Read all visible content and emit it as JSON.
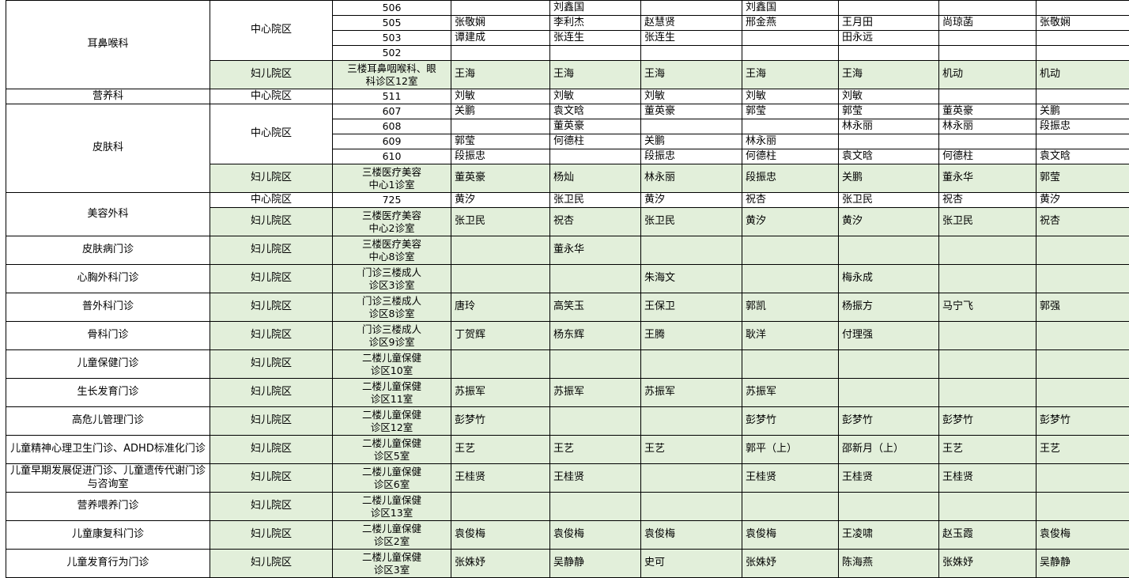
{
  "colors": {
    "green_row": "#e2efda",
    "grid_line": "#000000",
    "text": "#000000"
  },
  "table": {
    "schedule_columns": 7,
    "groups": [
      {
        "department": "耳鼻喉科",
        "sections": [
          {
            "campus": "中心院区",
            "green": false,
            "rows": [
              {
                "room": "506",
                "cells": [
                  "",
                  "刘鑫国",
                  "",
                  "刘鑫国",
                  "",
                  "",
                  ""
                ]
              },
              {
                "room": "505",
                "cells": [
                  "张敬娴",
                  "李利杰",
                  "赵慧贤",
                  "邢金燕",
                  "王月田",
                  "尚琼菡",
                  "张敬娴"
                ]
              },
              {
                "room": "503",
                "cells": [
                  "谭建成",
                  "张连生",
                  "张连生",
                  "",
                  "田永远",
                  "",
                  ""
                ]
              },
              {
                "room": "502",
                "cells": [
                  "",
                  "",
                  "",
                  "",
                  "",
                  "",
                  ""
                ]
              }
            ]
          },
          {
            "campus": "妇儿院区",
            "green": true,
            "rows": [
              {
                "room": "三楼耳鼻咽喉科、眼\n科诊区12室",
                "tall": true,
                "cells": [
                  "王海",
                  "王海",
                  "王海",
                  "王海",
                  "王海",
                  "机动",
                  "机动"
                ]
              }
            ]
          }
        ]
      },
      {
        "department": "营养科",
        "sections": [
          {
            "campus": "中心院区",
            "green": false,
            "rows": [
              {
                "room": "511",
                "cells": [
                  "刘敏",
                  "刘敏",
                  "刘敏",
                  "刘敏",
                  "刘敏",
                  "",
                  ""
                ]
              }
            ]
          }
        ]
      },
      {
        "department": "皮肤科",
        "sections": [
          {
            "campus": "中心院区",
            "green": false,
            "rows": [
              {
                "room": "607",
                "cells": [
                  "关鹏",
                  "袁文晗",
                  "董英豪",
                  "郭莹",
                  "郭莹",
                  "董英豪",
                  "关鹏"
                ]
              },
              {
                "room": "608",
                "cells": [
                  "",
                  "董英豪",
                  "",
                  "",
                  "林永丽",
                  "林永丽",
                  "段振忠"
                ]
              },
              {
                "room": "609",
                "cells": [
                  "郭莹",
                  "何德柱",
                  "关鹏",
                  "林永丽",
                  "",
                  "",
                  ""
                ]
              },
              {
                "room": "610",
                "cells": [
                  "段振忠",
                  "",
                  "段振忠",
                  "何德柱",
                  "袁文晗",
                  "何德柱",
                  "袁文晗"
                ]
              }
            ]
          },
          {
            "campus": "妇儿院区",
            "green": true,
            "rows": [
              {
                "room": "三楼医疗美容\n中心1诊室",
                "tall": true,
                "cells": [
                  "董英豪",
                  "杨灿",
                  "林永丽",
                  "段振忠",
                  "关鹏",
                  "董永华",
                  "郭莹"
                ]
              }
            ]
          }
        ]
      },
      {
        "department": "美容外科",
        "sections": [
          {
            "campus": "中心院区",
            "green": false,
            "rows": [
              {
                "room": "725",
                "cells": [
                  "黄汐",
                  "张卫民",
                  "黄汐",
                  "祝杏",
                  "张卫民",
                  "祝杏",
                  "黄汐"
                ]
              }
            ]
          },
          {
            "campus": "妇儿院区",
            "green": true,
            "rows": [
              {
                "room": "三楼医疗美容\n中心2诊室",
                "tall": true,
                "cells": [
                  "张卫民",
                  "祝杏",
                  "张卫民",
                  "黄汐",
                  "黄汐",
                  "张卫民",
                  "祝杏"
                ]
              }
            ]
          }
        ]
      },
      {
        "department": "皮肤病门诊",
        "sections": [
          {
            "campus": "妇儿院区",
            "green": true,
            "rows": [
              {
                "room": "三楼医疗美容\n中心8诊室",
                "tall": true,
                "cells": [
                  "",
                  "董永华",
                  "",
                  "",
                  "",
                  "",
                  ""
                ]
              }
            ]
          }
        ]
      },
      {
        "department": "心胸外科门诊",
        "sections": [
          {
            "campus": "妇儿院区",
            "green": true,
            "rows": [
              {
                "room": "门诊三楼成人\n诊区3诊室",
                "tall": true,
                "cells": [
                  "",
                  "",
                  "朱海文",
                  "",
                  "梅永成",
                  "",
                  ""
                ]
              }
            ]
          }
        ]
      },
      {
        "department": "普外科门诊",
        "sections": [
          {
            "campus": "妇儿院区",
            "green": true,
            "rows": [
              {
                "room": "门诊三楼成人\n诊区8诊室",
                "tall": true,
                "cells": [
                  "唐玲",
                  "高笑玉",
                  "王保卫",
                  "郭凯",
                  "杨振方",
                  "马宁飞",
                  "郭强"
                ]
              }
            ]
          }
        ]
      },
      {
        "department": "骨科门诊",
        "sections": [
          {
            "campus": "妇儿院区",
            "green": true,
            "rows": [
              {
                "room": "门诊三楼成人\n诊区9诊室",
                "tall": true,
                "cells": [
                  "丁贺辉",
                  "杨东辉",
                  "王腾",
                  "耿洋",
                  "付理强",
                  "",
                  ""
                ]
              }
            ]
          }
        ]
      },
      {
        "department": "儿童保健门诊",
        "sections": [
          {
            "campus": "妇儿院区",
            "green": true,
            "rows": [
              {
                "room": "二楼儿童保健\n诊区10室",
                "tall": true,
                "cells": [
                  "",
                  "",
                  "",
                  "",
                  "",
                  "",
                  ""
                ]
              }
            ]
          }
        ]
      },
      {
        "department": "生长发育门诊",
        "sections": [
          {
            "campus": "妇儿院区",
            "green": true,
            "rows": [
              {
                "room": "二楼儿童保健\n诊区11室",
                "tall": true,
                "cells": [
                  "苏振军",
                  "苏振军",
                  "苏振军",
                  "苏振军",
                  "",
                  "",
                  ""
                ]
              }
            ]
          }
        ]
      },
      {
        "department": "高危儿管理门诊",
        "sections": [
          {
            "campus": "妇儿院区",
            "green": true,
            "rows": [
              {
                "room": "二楼儿童保健\n诊区12室",
                "tall": true,
                "cells": [
                  "彭梦竹",
                  "",
                  "",
                  "彭梦竹",
                  "彭梦竹",
                  "彭梦竹",
                  "彭梦竹"
                ]
              }
            ]
          }
        ]
      },
      {
        "department": "儿童精神心理卫生门诊、ADHD标准化门诊",
        "sections": [
          {
            "campus": "妇儿院区",
            "green": true,
            "rows": [
              {
                "room": "二楼儿童保健\n诊区5室",
                "tall": true,
                "cells": [
                  "王艺",
                  "王艺",
                  "王艺",
                  "郭平（上）",
                  "邵新月（上）",
                  "王艺",
                  "王艺"
                ]
              }
            ]
          }
        ]
      },
      {
        "department": "儿童早期发展促进门诊、儿童遗传代谢门诊与咨询室",
        "sections": [
          {
            "campus": "妇儿院区",
            "green": true,
            "rows": [
              {
                "room": "二楼儿童保健\n诊区6室",
                "tall": true,
                "cells": [
                  "王桂贤",
                  "王桂贤",
                  "",
                  "王桂贤",
                  "王桂贤",
                  "王桂贤",
                  ""
                ]
              }
            ]
          }
        ]
      },
      {
        "department": "营养喂养门诊",
        "sections": [
          {
            "campus": "妇儿院区",
            "green": true,
            "rows": [
              {
                "room": "二楼儿童保健\n诊区13室",
                "tall": true,
                "cells": [
                  "",
                  "",
                  "",
                  "",
                  "",
                  "",
                  ""
                ]
              }
            ]
          }
        ]
      },
      {
        "department": "儿童康复科门诊",
        "sections": [
          {
            "campus": "妇儿院区",
            "green": true,
            "rows": [
              {
                "room": "二楼儿童保健\n诊区2室",
                "tall": true,
                "cells": [
                  "袁俊梅",
                  "袁俊梅",
                  "袁俊梅",
                  "袁俊梅",
                  "王凌啸",
                  "赵玉霞",
                  "袁俊梅"
                ]
              }
            ]
          }
        ]
      },
      {
        "department": "儿童发育行为门诊",
        "sections": [
          {
            "campus": "妇儿院区",
            "green": true,
            "rows": [
              {
                "room": "二楼儿童保健\n诊区3室",
                "tall": true,
                "cells": [
                  "张姝妤",
                  "吴静静",
                  "史可",
                  "张姝妤",
                  "陈海燕",
                  "张姝妤",
                  "吴静静"
                ]
              }
            ]
          }
        ]
      }
    ]
  }
}
